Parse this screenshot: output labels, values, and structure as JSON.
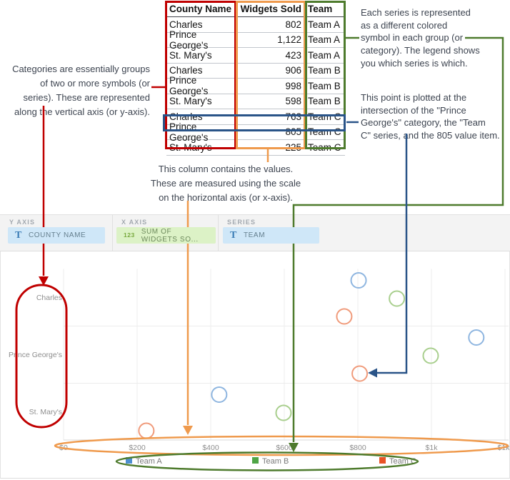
{
  "annotations": {
    "categories": "Categories are essentially groups\nof two or more symbols (or\nseries). These are represented\nalong the vertical axis (or y-axis).",
    "series": "Each series is represented\nas a different colored\nsymbol in each group (or\ncategory). The legend shows\nyou which series is which.",
    "point": "This point is plotted at the\nintersection of the \"Prince\nGeorge's\" category, the \"Team\nC\" series, and the 805 value item.",
    "values": "This column contains the values.\nThese are measured using the scale\non the horizontal axis (or x-axis)."
  },
  "table": {
    "columns": [
      "County Name",
      "Widgets Sold",
      "Team"
    ],
    "rows": [
      [
        "Charles",
        "802",
        "Team A"
      ],
      [
        "Prince George's",
        "1,122",
        "Team A"
      ],
      [
        "St. Mary's",
        "423",
        "Team A"
      ],
      [
        "Charles",
        "906",
        "Team B"
      ],
      [
        "Prince George's",
        "998",
        "Team B"
      ],
      [
        "St. Mary's",
        "598",
        "Team B"
      ],
      [
        "Charles",
        "763",
        "Team C"
      ],
      [
        "Prince George's",
        "805",
        "Team C"
      ],
      [
        "St. Mary's",
        "225",
        "Team C"
      ]
    ],
    "highlighted_row_index": 7
  },
  "toolbar": {
    "sections": [
      {
        "label": "Y AXIS",
        "chip": {
          "icon_glyph": "T",
          "label": "COUNTY NAME"
        }
      },
      {
        "label": "X AXIS",
        "chip": {
          "icon_glyph": "123",
          "label": "SUM OF WIDGETS SO..."
        }
      },
      {
        "label": "SERIES",
        "chip": {
          "icon_glyph": "T",
          "label": "TEAM"
        }
      }
    ]
  },
  "chart_data": {
    "type": "scatter",
    "orientation": "categories-on-y-axis",
    "categories": [
      "Charles",
      "Prince George's",
      "St. Mary's"
    ],
    "series": [
      {
        "name": "Team A",
        "circle_color": "#8fb6e0",
        "legend_color": "#4d8fd1",
        "values": [
          802,
          1122,
          423
        ]
      },
      {
        "name": "Team B",
        "circle_color": "#a9cf8e",
        "legend_color": "#4fa546",
        "values": [
          906,
          998,
          598
        ]
      },
      {
        "name": "Team C",
        "circle_color": "#f09b7b",
        "legend_color": "#e85326",
        "values": [
          763,
          805,
          225
        ]
      }
    ],
    "x_ticks": [
      "$0",
      "$200",
      "$400",
      "$600",
      "$800",
      "$1k",
      "$1k"
    ],
    "x_range": [
      0,
      1200
    ],
    "grid": true,
    "legend_position": "bottom"
  },
  "colors": {
    "annotation_red": "#c00000",
    "annotation_orange": "#ef9a4d",
    "annotation_green": "#4e7b2d",
    "annotation_blue": "#2a5488",
    "gridline": "#ececec",
    "axis_line": "#d8d8d8",
    "axis_text": "#8f8f8f",
    "legend_text": "#7a7a7a"
  }
}
